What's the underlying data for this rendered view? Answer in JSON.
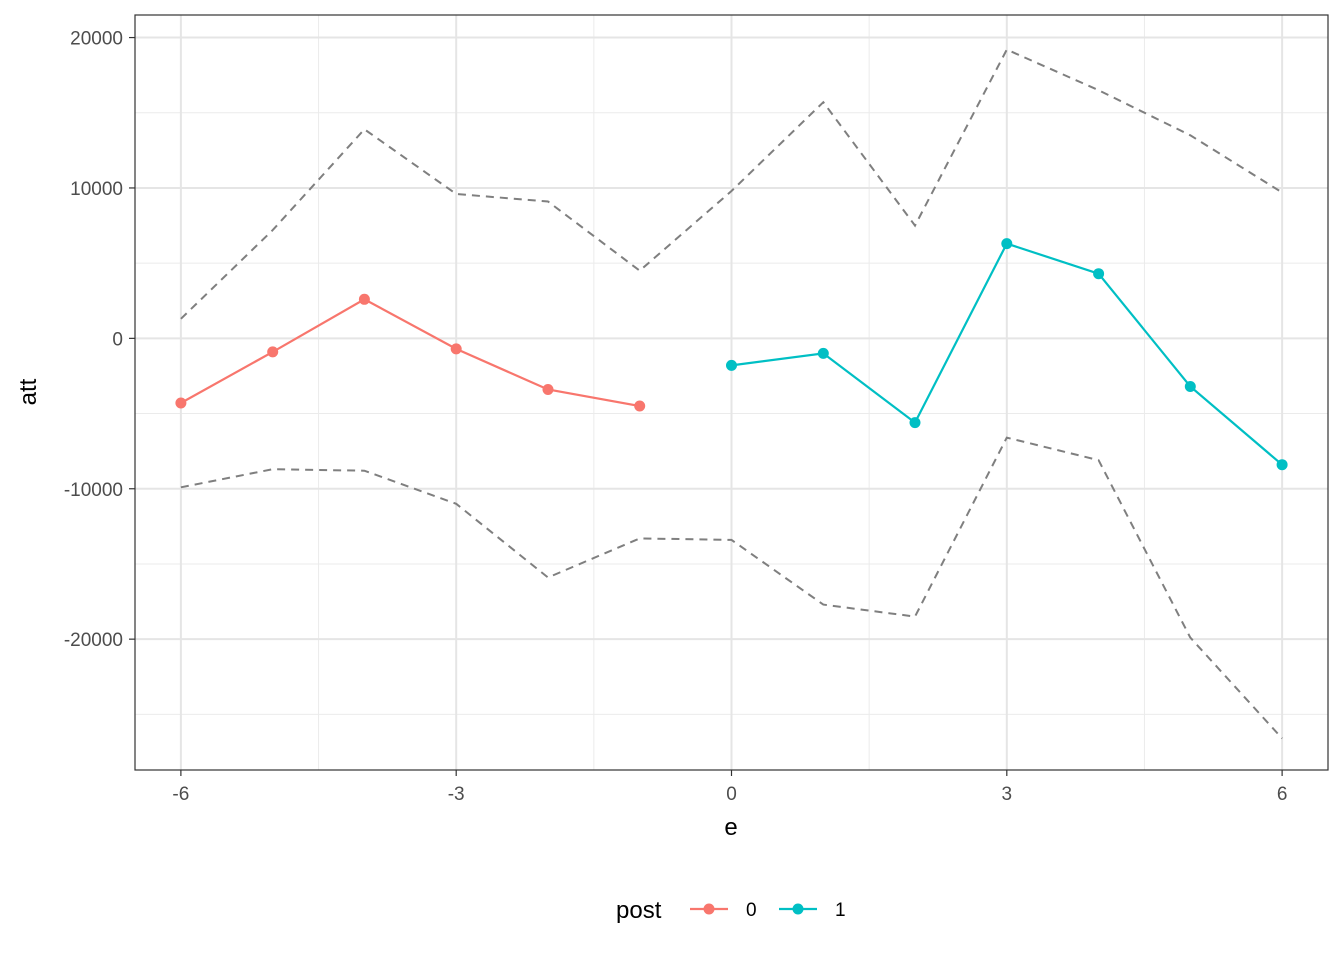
{
  "chart_data": {
    "type": "line",
    "xlabel": "e",
    "ylabel": "att",
    "xlim": [
      -6.5,
      6.5
    ],
    "ylim": [
      -28700,
      21500
    ],
    "x_ticks": [
      -6,
      -3,
      0,
      3,
      6
    ],
    "x_tick_labels": [
      "-6",
      "-3",
      "0",
      "3",
      "6"
    ],
    "y_ticks": [
      -20000,
      -10000,
      0,
      10000,
      20000
    ],
    "y_tick_labels": [
      "-20000",
      "-10000",
      "0",
      "10000",
      "20000"
    ],
    "grid": true,
    "legend": {
      "title": "post",
      "position": "bottom"
    },
    "series": [
      {
        "name": "0",
        "color": "#F8766D",
        "points": [
          {
            "x": -6,
            "y": -4300
          },
          {
            "x": -5,
            "y": -900
          },
          {
            "x": -4,
            "y": 2600
          },
          {
            "x": -3,
            "y": -700
          },
          {
            "x": -2,
            "y": -3400
          },
          {
            "x": -1,
            "y": -4500
          }
        ]
      },
      {
        "name": "1",
        "color": "#00BFC4",
        "points": [
          {
            "x": 0,
            "y": -1800
          },
          {
            "x": 1,
            "y": -1000
          },
          {
            "x": 2,
            "y": -5600
          },
          {
            "x": 3,
            "y": 6300
          },
          {
            "x": 4,
            "y": 4300
          },
          {
            "x": 5,
            "y": -3200
          },
          {
            "x": 6,
            "y": -8400
          }
        ]
      }
    ],
    "confidence_bounds": {
      "color": "#7f7f7f",
      "style": "dashed",
      "upper": [
        {
          "x": -6,
          "y": 1300
        },
        {
          "x": -5,
          "y": 7200
        },
        {
          "x": -4,
          "y": 13900
        },
        {
          "x": -3,
          "y": 9600
        },
        {
          "x": -2,
          "y": 9100
        },
        {
          "x": -1,
          "y": 4500
        },
        {
          "x": 0,
          "y": 9800
        },
        {
          "x": 1,
          "y": 15700
        },
        {
          "x": 2,
          "y": 7500
        },
        {
          "x": 3,
          "y": 19200
        },
        {
          "x": 4,
          "y": 16500
        },
        {
          "x": 5,
          "y": 13500
        },
        {
          "x": 6,
          "y": 9700
        }
      ],
      "lower": [
        {
          "x": -6,
          "y": -9900
        },
        {
          "x": -5,
          "y": -8700
        },
        {
          "x": -4,
          "y": -8800
        },
        {
          "x": -3,
          "y": -11000
        },
        {
          "x": -2,
          "y": -15900
        },
        {
          "x": -1,
          "y": -13300
        },
        {
          "x": 0,
          "y": -13400
        },
        {
          "x": 1,
          "y": -17700
        },
        {
          "x": 2,
          "y": -18500
        },
        {
          "x": 3,
          "y": -6600
        },
        {
          "x": 4,
          "y": -8100
        },
        {
          "x": 5,
          "y": -19900
        },
        {
          "x": 6,
          "y": -26600
        }
      ]
    }
  }
}
